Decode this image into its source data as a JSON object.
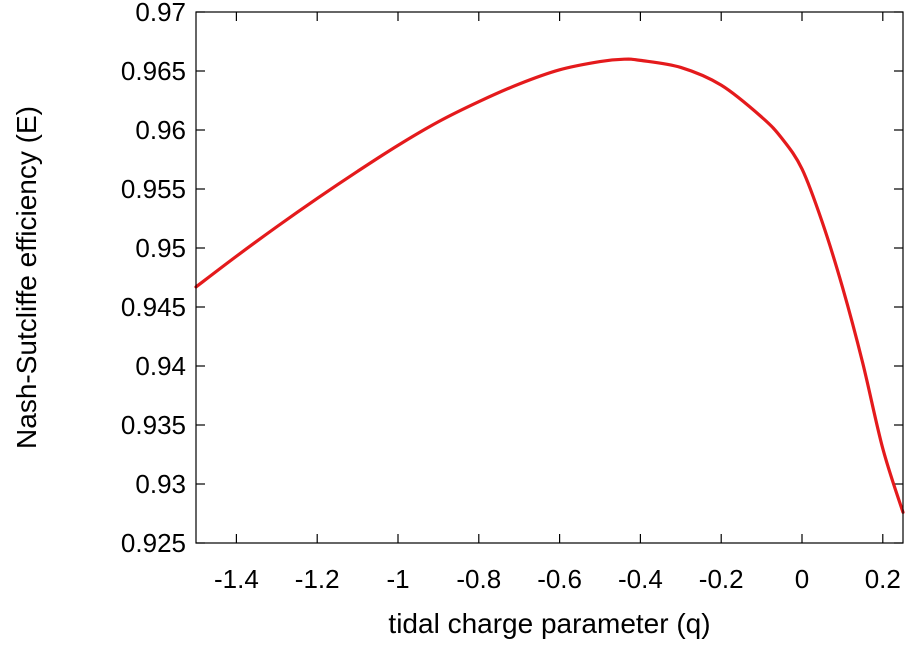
{
  "chart_data": {
    "type": "line",
    "title": "",
    "xlabel": "tidal charge parameter (q)",
    "ylabel": "Nash-Sutcliffe efficiency (E)",
    "xlim": [
      -1.5,
      0.25
    ],
    "ylim": [
      0.925,
      0.97
    ],
    "grid": false,
    "xticks": [
      -1.4,
      -1.2,
      -1.0,
      -0.8,
      -0.6,
      -0.4,
      -0.2,
      0.0,
      0.2
    ],
    "xtick_labels": [
      "-1.4",
      "-1.2",
      "-1",
      "-0.8",
      "-0.6",
      "-0.4",
      "-0.2",
      "0",
      "0.2"
    ],
    "yticks": [
      0.925,
      0.93,
      0.935,
      0.94,
      0.945,
      0.95,
      0.955,
      0.96,
      0.965,
      0.97
    ],
    "ytick_labels": [
      "0.925",
      "0.93",
      "0.935",
      "0.94",
      "0.945",
      "0.95",
      "0.955",
      "0.96",
      "0.965",
      "0.97"
    ],
    "series": [
      {
        "color": "#e41a1c",
        "x": [
          -1.5,
          -1.4,
          -1.3,
          -1.2,
          -1.1,
          -1.0,
          -0.9,
          -0.8,
          -0.7,
          -0.6,
          -0.5,
          -0.44,
          -0.4,
          -0.3,
          -0.2,
          -0.1,
          -0.05,
          0.0,
          0.05,
          0.1,
          0.15,
          0.2,
          0.25
        ],
        "y": [
          0.9467,
          0.9493,
          0.9518,
          0.9542,
          0.9565,
          0.9587,
          0.9607,
          0.9624,
          0.9639,
          0.9651,
          0.9658,
          0.966,
          0.9659,
          0.9653,
          0.9638,
          0.9611,
          0.9593,
          0.9567,
          0.9522,
          0.9467,
          0.9403,
          0.933,
          0.9276
        ]
      }
    ]
  }
}
